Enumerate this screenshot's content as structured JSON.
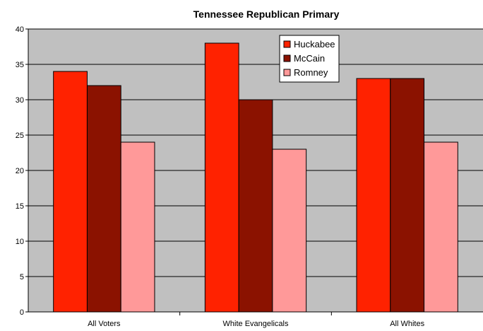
{
  "chart_data": {
    "type": "bar",
    "title": "Tennessee Republican Primary",
    "xlabel": "",
    "ylabel": "",
    "categories": [
      "All Voters",
      "White Evangelicals",
      "All Whites"
    ],
    "series": [
      {
        "name": "Huckabee",
        "values": [
          34,
          38,
          33
        ],
        "color": "#ff2200"
      },
      {
        "name": "McCain",
        "values": [
          32,
          30,
          33
        ],
        "color": "#8b1200"
      },
      {
        "name": "Romney",
        "values": [
          24,
          23,
          24
        ],
        "color": "#ff9999"
      }
    ],
    "ylim": [
      0,
      40
    ],
    "yticks": [
      0,
      5,
      10,
      15,
      20,
      25,
      30,
      35,
      40
    ],
    "grid": true,
    "legend_position": "top-right",
    "plot_background": "#c0c0c0"
  }
}
